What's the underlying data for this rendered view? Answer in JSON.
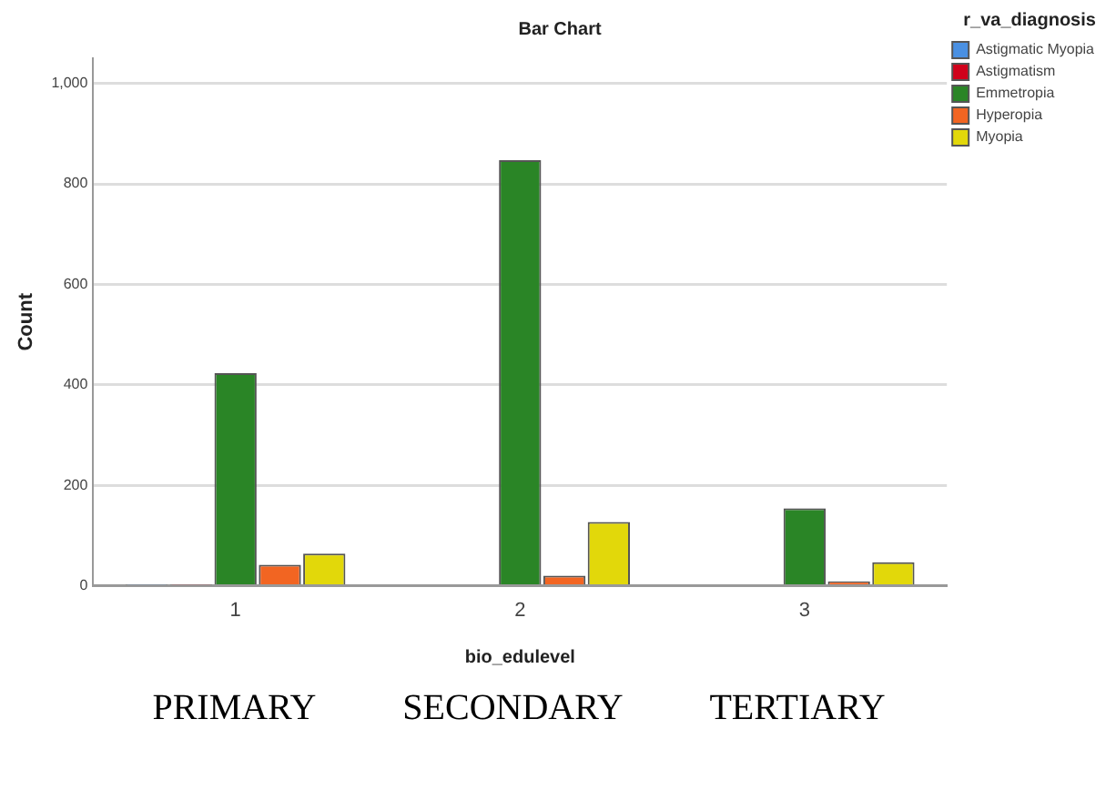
{
  "chart_data": {
    "type": "bar",
    "title": "Bar Chart",
    "xlabel": "bio_edulevel",
    "ylabel": "Count",
    "legend_title": "r_va_diagnosis",
    "categories": [
      "1",
      "2",
      "3"
    ],
    "series": [
      {
        "name": "Astigmatic Myopia",
        "color": "#4a90e2",
        "values": [
          2,
          null,
          null
        ]
      },
      {
        "name": "Astigmatism",
        "color": "#d0021b",
        "values": [
          2,
          null,
          null
        ]
      },
      {
        "name": "Emmetropia",
        "color": "#2a8526",
        "values": [
          423,
          847,
          154
        ]
      },
      {
        "name": "Hyperopia",
        "color": "#f26522",
        "values": [
          42,
          20,
          9
        ]
      },
      {
        "name": "Myopia",
        "color": "#e2d80a",
        "values": [
          64,
          127,
          47
        ]
      }
    ],
    "ylim": [
      0,
      1050
    ],
    "yticks": [
      0,
      200,
      400,
      600,
      800,
      {
        "value": 1000,
        "label": "1,000"
      }
    ],
    "grid": "y",
    "legend": "top right",
    "annotations": [
      "PRIMARY",
      "SECONDARY",
      "TERTIARY"
    ]
  }
}
